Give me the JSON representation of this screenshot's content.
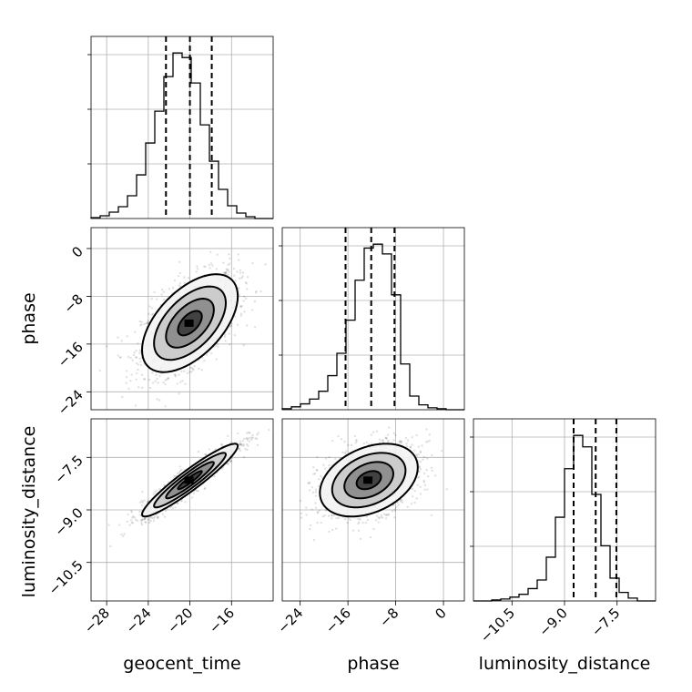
{
  "chart_data": {
    "type": "corner",
    "parameters": [
      "geocent_time",
      "phase",
      "luminosity_distance"
    ],
    "axis_labels": {
      "x": [
        "geocent_time",
        "phase",
        "luminosity_distance"
      ],
      "y": [
        "",
        "phase",
        "luminosity_distance"
      ]
    },
    "ranges": {
      "geocent_time": [
        -29.5,
        -12.0
      ],
      "phase": [
        -27.0,
        3.5
      ],
      "luminosity_distance": [
        -11.6,
        -6.4
      ]
    },
    "ticks": {
      "geocent_time": [
        -28,
        -24,
        -20,
        -16
      ],
      "phase": [
        -24,
        -16,
        -8,
        0
      ],
      "luminosity_distance": [
        -10.5,
        -9.0,
        -7.5
      ]
    },
    "tick_labels": {
      "geocent_time": [
        "−28",
        "−24",
        "−20",
        "−16"
      ],
      "phase": [
        "−24",
        "−16",
        "−8",
        "0"
      ],
      "luminosity_distance": [
        "−10.5",
        "−9.0",
        "−7.5"
      ]
    },
    "quantiles": {
      "geocent_time": [
        -22.3,
        -20.0,
        -17.9
      ],
      "phase": [
        -16.4,
        -12.1,
        -8.2
      ],
      "luminosity_distance": [
        -8.74,
        -8.11,
        -7.52
      ]
    },
    "histograms": {
      "geocent_time": {
        "edges_range": [
          -29.5,
          -12.0
        ],
        "counts": [
          1,
          3,
          7,
          13,
          25,
          48,
          83,
          118,
          156,
          182,
          177,
          149,
          103,
          63,
          32,
          14,
          6,
          2,
          0,
          0
        ]
      },
      "phase": {
        "edges_range": [
          -27.0,
          3.5
        ],
        "counts": [
          1,
          3,
          6,
          11,
          19,
          35,
          58,
          92,
          133,
          166,
          170,
          160,
          118,
          47,
          14,
          5,
          2,
          1,
          0,
          0
        ]
      },
      "luminosity_distance": {
        "edges_range": [
          -11.6,
          -6.4
        ],
        "counts": [
          0,
          0,
          1,
          2,
          4,
          7,
          13,
          22,
          46,
          88,
          139,
          174,
          162,
          112,
          58,
          24,
          9,
          3,
          0,
          0
        ]
      }
    },
    "pairs": [
      {
        "x": "geocent_time",
        "y": "phase",
        "mean": [
          -20.0,
          -12.5
        ],
        "std": [
          2.3,
          4.1
        ],
        "correlation": 0.55
      },
      {
        "x": "geocent_time",
        "y": "luminosity_distance",
        "mean": [
          -20.0,
          -8.15
        ],
        "std": [
          2.3,
          0.52
        ],
        "correlation": 0.94
      },
      {
        "x": "phase",
        "y": "luminosity_distance",
        "mean": [
          -12.5,
          -8.15
        ],
        "std": [
          4.1,
          0.52
        ],
        "correlation": 0.35
      }
    ],
    "contour_levels_sigma": [
      0.5,
      1.0,
      1.5,
      2.0
    ],
    "grid": true
  }
}
